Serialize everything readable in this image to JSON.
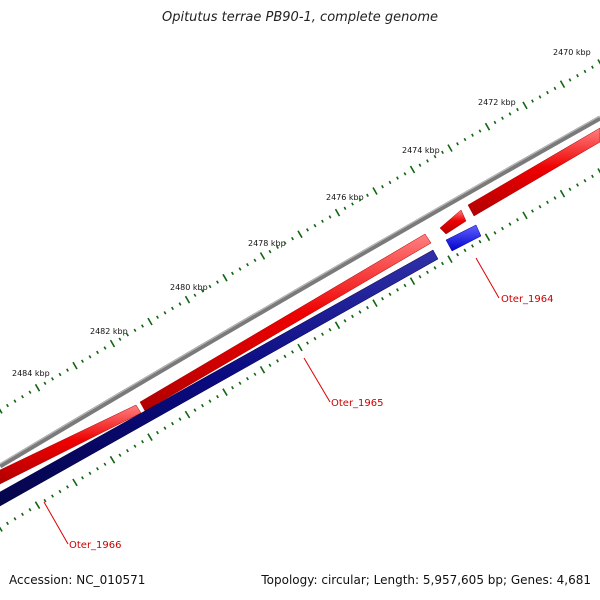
{
  "title": "Opitutus terrae PB90-1, complete genome",
  "footer": {
    "accession": "Accession: NC_010571",
    "summary": "Topology: circular; Length: 5,957,605 bp; Genes: 4,681"
  },
  "colors": {
    "backbone": "#7a7a7a",
    "forward_gene": "#ee0000",
    "reverse_gene_dark": "#0a0a80",
    "reverse_gene_blue": "#1515ee",
    "tick": "#116611",
    "label_line": "#dd0000",
    "label_text": "#cc0000"
  },
  "ruler": {
    "unit": "kbp",
    "labels": [
      "2470 kbp",
      "2472 kbp",
      "2474 kbp",
      "2476 kbp",
      "2478 kbp",
      "2480 kbp",
      "2482 kbp",
      "2484 kbp"
    ]
  },
  "genes": [
    {
      "name": "Oter_1964"
    },
    {
      "name": "Oter_1965"
    },
    {
      "name": "Oter_1966"
    }
  ]
}
